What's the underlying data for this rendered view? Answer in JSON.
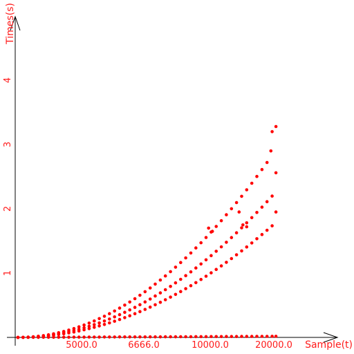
{
  "chart_data": {
    "type": "scatter",
    "xlabel": "Sample(t)",
    "ylabel": "Times(s)",
    "x_ticks": [
      "5000.0",
      "6666.0",
      "10000.0",
      "20000.0"
    ],
    "y_ticks": [
      "1",
      "2",
      "3",
      "4"
    ],
    "xlim": [
      0,
      20000
    ],
    "ylim": [
      0,
      5
    ],
    "grid": false,
    "legend": "none",
    "point_color": "#ff0000",
    "series": [
      {
        "points": [
          [
            0,
            0.0
          ],
          [
            400,
            0.001
          ],
          [
            800,
            0.004
          ],
          [
            1200,
            0.01
          ],
          [
            1600,
            0.018
          ],
          [
            2000,
            0.028
          ],
          [
            2400,
            0.041
          ],
          [
            2800,
            0.056
          ],
          [
            3200,
            0.073
          ],
          [
            3600,
            0.092
          ],
          [
            4000,
            0.114
          ],
          [
            4400,
            0.138
          ],
          [
            4800,
            0.164
          ],
          [
            5200,
            0.192
          ],
          [
            5600,
            0.223
          ],
          [
            6000,
            0.256
          ],
          [
            6400,
            0.292
          ],
          [
            6800,
            0.329
          ],
          [
            7200,
            0.369
          ],
          [
            7600,
            0.411
          ],
          [
            8000,
            0.456
          ],
          [
            8400,
            0.502
          ],
          [
            8800,
            0.551
          ],
          [
            9200,
            0.602
          ],
          [
            9600,
            0.656
          ],
          [
            10000,
            0.711
          ],
          [
            10400,
            0.769
          ],
          [
            10800,
            0.829
          ],
          [
            11200,
            0.892
          ],
          [
            11600,
            0.956
          ],
          [
            12000,
            1.023
          ],
          [
            12400,
            1.092
          ],
          [
            12800,
            1.164
          ],
          [
            13200,
            1.237
          ],
          [
            13600,
            1.313
          ],
          [
            14000,
            1.391
          ],
          [
            14400,
            1.472
          ],
          [
            14800,
            1.554
          ],
          [
            15200,
            1.639
          ],
          [
            15600,
            1.726
          ],
          [
            16000,
            1.815
          ],
          [
            16400,
            1.907
          ],
          [
            16800,
            2.001
          ],
          [
            17200,
            2.097
          ],
          [
            17600,
            2.195
          ],
          [
            18000,
            2.296
          ],
          [
            18400,
            2.398
          ],
          [
            18800,
            2.503
          ],
          [
            19200,
            2.611
          ],
          [
            19600,
            2.72
          ],
          [
            19900,
            2.9
          ],
          [
            20000,
            3.2
          ],
          [
            20300,
            3.28
          ]
        ]
      },
      {
        "points": [
          [
            0,
            0.0
          ],
          [
            400,
            0.001
          ],
          [
            800,
            0.003
          ],
          [
            1200,
            0.008
          ],
          [
            1600,
            0.014
          ],
          [
            2000,
            0.022
          ],
          [
            2400,
            0.032
          ],
          [
            2800,
            0.043
          ],
          [
            3200,
            0.057
          ],
          [
            3600,
            0.072
          ],
          [
            4000,
            0.088
          ],
          [
            4400,
            0.107
          ],
          [
            4800,
            0.127
          ],
          [
            5200,
            0.149
          ],
          [
            5600,
            0.173
          ],
          [
            6000,
            0.199
          ],
          [
            6400,
            0.226
          ],
          [
            6800,
            0.255
          ],
          [
            7200,
            0.286
          ],
          [
            7600,
            0.319
          ],
          [
            8000,
            0.354
          ],
          [
            8400,
            0.39
          ],
          [
            8800,
            0.428
          ],
          [
            9200,
            0.467
          ],
          [
            9600,
            0.509
          ],
          [
            10000,
            0.552
          ],
          [
            10400,
            0.597
          ],
          [
            10800,
            0.644
          ],
          [
            11200,
            0.692
          ],
          [
            11600,
            0.742
          ],
          [
            12000,
            0.794
          ],
          [
            12400,
            0.848
          ],
          [
            12800,
            0.903
          ],
          [
            13200,
            0.96
          ],
          [
            13600,
            1.019
          ],
          [
            14000,
            1.08
          ],
          [
            14400,
            1.142
          ],
          [
            14800,
            1.206
          ],
          [
            15200,
            1.272
          ],
          [
            15600,
            1.34
          ],
          [
            16000,
            1.409
          ],
          [
            16400,
            1.48
          ],
          [
            16800,
            1.553
          ],
          [
            17200,
            1.627
          ],
          [
            17600,
            1.704
          ],
          [
            18000,
            1.782
          ],
          [
            18400,
            1.862
          ],
          [
            18800,
            1.943
          ],
          [
            19200,
            2.026
          ],
          [
            19600,
            2.111
          ],
          [
            20000,
            2.198
          ],
          [
            20300,
            2.56
          ]
        ]
      },
      {
        "points": [
          [
            0,
            0.0
          ],
          [
            400,
            0.001
          ],
          [
            800,
            0.003
          ],
          [
            1200,
            0.006
          ],
          [
            1600,
            0.011
          ],
          [
            2000,
            0.017
          ],
          [
            2400,
            0.025
          ],
          [
            2800,
            0.034
          ],
          [
            3200,
            0.045
          ],
          [
            3600,
            0.056
          ],
          [
            4000,
            0.07
          ],
          [
            4400,
            0.084
          ],
          [
            4800,
            0.1
          ],
          [
            5200,
            0.118
          ],
          [
            5600,
            0.137
          ],
          [
            6000,
            0.157
          ],
          [
            6400,
            0.178
          ],
          [
            6800,
            0.201
          ],
          [
            7200,
            0.226
          ],
          [
            7600,
            0.252
          ],
          [
            8000,
            0.279
          ],
          [
            8400,
            0.307
          ],
          [
            8800,
            0.337
          ],
          [
            9200,
            0.369
          ],
          [
            9600,
            0.401
          ],
          [
            10000,
            0.436
          ],
          [
            10400,
            0.471
          ],
          [
            10800,
            0.508
          ],
          [
            11200,
            0.546
          ],
          [
            11600,
            0.586
          ],
          [
            12000,
            0.627
          ],
          [
            12400,
            0.669
          ],
          [
            12800,
            0.713
          ],
          [
            13200,
            0.758
          ],
          [
            13600,
            0.804
          ],
          [
            14000,
            0.852
          ],
          [
            14400,
            0.901
          ],
          [
            14800,
            0.952
          ],
          [
            15200,
            1.004
          ],
          [
            15600,
            1.057
          ],
          [
            16000,
            1.112
          ],
          [
            16400,
            1.168
          ],
          [
            16800,
            1.226
          ],
          [
            17200,
            1.285
          ],
          [
            17600,
            1.345
          ],
          [
            18000,
            1.406
          ],
          [
            18400,
            1.469
          ],
          [
            18800,
            1.534
          ],
          [
            19200,
            1.6
          ],
          [
            19600,
            1.667
          ],
          [
            20000,
            1.736
          ],
          [
            20300,
            1.95
          ]
        ]
      },
      {
        "points": [
          [
            0,
            0.0
          ],
          [
            400,
            0.0
          ],
          [
            800,
            0.0
          ],
          [
            1200,
            0.001
          ],
          [
            1600,
            0.001
          ],
          [
            2000,
            0.002
          ],
          [
            2400,
            0.002
          ],
          [
            2800,
            0.002
          ],
          [
            3200,
            0.003
          ],
          [
            3600,
            0.003
          ],
          [
            4000,
            0.003
          ],
          [
            4400,
            0.004
          ],
          [
            4800,
            0.004
          ],
          [
            5200,
            0.004
          ],
          [
            5600,
            0.005
          ],
          [
            6000,
            0.005
          ],
          [
            6400,
            0.005
          ],
          [
            6800,
            0.006
          ],
          [
            7200,
            0.006
          ],
          [
            7600,
            0.006
          ],
          [
            8000,
            0.007
          ],
          [
            8400,
            0.007
          ],
          [
            8800,
            0.007
          ],
          [
            9200,
            0.008
          ],
          [
            9600,
            0.008
          ],
          [
            10000,
            0.008
          ],
          [
            10400,
            0.009
          ],
          [
            10800,
            0.009
          ],
          [
            11200,
            0.009
          ],
          [
            11600,
            0.01
          ],
          [
            12000,
            0.01
          ],
          [
            12400,
            0.01
          ],
          [
            12800,
            0.011
          ],
          [
            13200,
            0.011
          ],
          [
            13600,
            0.011
          ],
          [
            14000,
            0.012
          ],
          [
            14400,
            0.012
          ],
          [
            14800,
            0.012
          ],
          [
            15200,
            0.013
          ],
          [
            15600,
            0.013
          ],
          [
            16000,
            0.013
          ],
          [
            16400,
            0.014
          ],
          [
            16800,
            0.014
          ],
          [
            17200,
            0.014
          ],
          [
            17600,
            0.015
          ],
          [
            18000,
            0.015
          ],
          [
            18400,
            0.015
          ],
          [
            18800,
            0.016
          ],
          [
            19200,
            0.016
          ],
          [
            19600,
            0.016
          ],
          [
            20000,
            0.017
          ],
          [
            20300,
            0.017
          ]
        ]
      }
    ],
    "outliers": [
      [
        15000,
        1.7
      ],
      [
        15300,
        1.65
      ],
      [
        17400,
        1.95
      ],
      [
        17700,
        1.75
      ],
      [
        18000,
        1.72
      ]
    ]
  }
}
